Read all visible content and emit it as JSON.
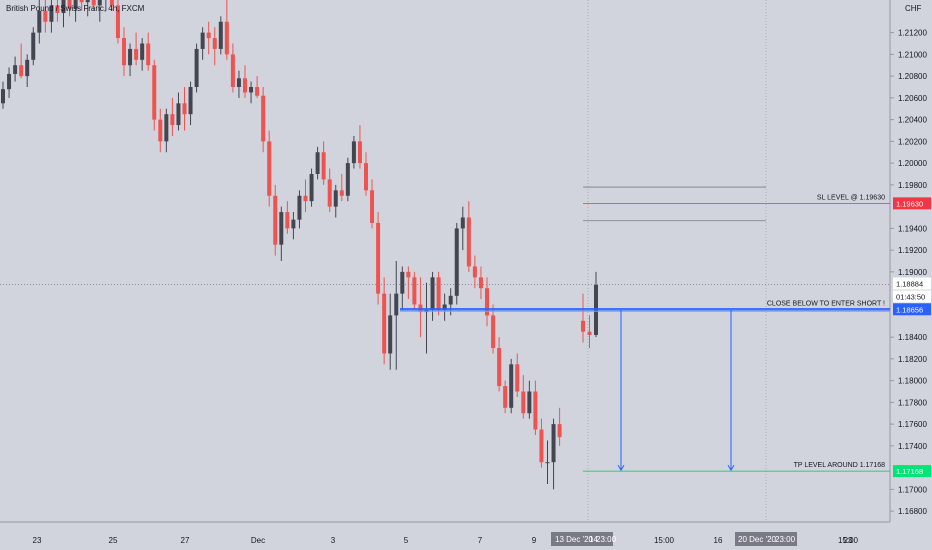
{
  "chart_data": {
    "type": "candlestick",
    "title": "British Pound / Swiss Franc, 4h, FXCM",
    "currency": "CHF",
    "ylim": [
      1.167,
      1.215
    ],
    "y_ticks": [
      "1.21200",
      "1.21000",
      "1.20800",
      "1.20600",
      "1.20400",
      "1.20200",
      "1.20000",
      "1.19800",
      "1.19400",
      "1.19200",
      "1.19000",
      "1.18400",
      "1.18200",
      "1.18000",
      "1.17800",
      "1.17600",
      "1.17400",
      "1.17000",
      "1.16800"
    ],
    "x_ticks": [
      "23",
      "25",
      "27",
      "Dec",
      "3",
      "5",
      "7",
      "9",
      "15:00",
      "16",
      "15:00",
      "23"
    ],
    "x_highlight_labels": [
      "13 Dec '20",
      "14",
      "23:00",
      "20 Dec '20",
      "23:00"
    ],
    "candles": [
      [
        1.2055,
        1.2075,
        1.205,
        1.2068
      ],
      [
        1.2068,
        1.2088,
        1.206,
        1.2082
      ],
      [
        1.2082,
        1.2098,
        1.2075,
        1.209
      ],
      [
        1.209,
        1.211,
        1.2078,
        1.208
      ],
      [
        1.208,
        1.21,
        1.207,
        1.2095
      ],
      [
        1.2095,
        1.2125,
        1.209,
        1.212
      ],
      [
        1.212,
        1.215,
        1.211,
        1.214
      ],
      [
        1.214,
        1.216,
        1.212,
        1.213
      ],
      [
        1.213,
        1.2155,
        1.212,
        1.2145
      ],
      [
        1.2145,
        1.2165,
        1.213,
        1.2138
      ],
      [
        1.2138,
        1.216,
        1.2125,
        1.215
      ],
      [
        1.215,
        1.217,
        1.2135,
        1.2142
      ],
      [
        1.2142,
        1.216,
        1.213,
        1.2152
      ],
      [
        1.2152,
        1.217,
        1.214,
        1.2148
      ],
      [
        1.2148,
        1.2165,
        1.2135,
        1.2155
      ],
      [
        1.2155,
        1.217,
        1.214,
        1.2145
      ],
      [
        1.2145,
        1.2165,
        1.213,
        1.215
      ],
      [
        1.215,
        1.2165,
        1.214,
        1.2158
      ],
      [
        1.2158,
        1.2168,
        1.214,
        1.2145
      ],
      [
        1.2145,
        1.216,
        1.211,
        1.2115
      ],
      [
        1.2115,
        1.2125,
        1.208,
        1.209
      ],
      [
        1.209,
        1.211,
        1.208,
        1.2105
      ],
      [
        1.2105,
        1.212,
        1.209,
        1.2095
      ],
      [
        1.2095,
        1.2115,
        1.2085,
        1.211
      ],
      [
        1.211,
        1.212,
        1.2085,
        1.209
      ],
      [
        1.209,
        1.2095,
        1.203,
        1.204
      ],
      [
        1.204,
        1.205,
        1.201,
        1.202
      ],
      [
        1.202,
        1.205,
        1.201,
        1.2045
      ],
      [
        1.2045,
        1.206,
        1.2025,
        1.2035
      ],
      [
        1.2035,
        1.2065,
        1.203,
        1.2055
      ],
      [
        1.2055,
        1.207,
        1.203,
        1.2045
      ],
      [
        1.2045,
        1.2075,
        1.2035,
        1.207
      ],
      [
        1.207,
        1.211,
        1.2065,
        1.2105
      ],
      [
        1.2105,
        1.2125,
        1.2095,
        1.212
      ],
      [
        1.212,
        1.213,
        1.21,
        1.2115
      ],
      [
        1.2115,
        1.2125,
        1.209,
        1.2105
      ],
      [
        1.2105,
        1.2135,
        1.21,
        1.213
      ],
      [
        1.213,
        1.218,
        1.2095,
        1.21
      ],
      [
        1.21,
        1.211,
        1.2065,
        1.207
      ],
      [
        1.207,
        1.2085,
        1.206,
        1.2078
      ],
      [
        1.2078,
        1.209,
        1.206,
        1.2065
      ],
      [
        1.2065,
        1.2075,
        1.2055,
        1.207
      ],
      [
        1.207,
        1.208,
        1.206,
        1.2062
      ],
      [
        1.2062,
        1.207,
        1.201,
        1.202
      ],
      [
        1.202,
        1.203,
        1.196,
        1.197
      ],
      [
        1.197,
        1.198,
        1.1915,
        1.1925
      ],
      [
        1.1925,
        1.196,
        1.191,
        1.1955
      ],
      [
        1.1955,
        1.1965,
        1.1935,
        1.194
      ],
      [
        1.194,
        1.1955,
        1.193,
        1.1948
      ],
      [
        1.1948,
        1.1975,
        1.194,
        1.197
      ],
      [
        1.197,
        1.1985,
        1.1955,
        1.1965
      ],
      [
        1.1965,
        1.1995,
        1.196,
        1.199
      ],
      [
        1.199,
        1.2015,
        1.1985,
        1.201
      ],
      [
        1.201,
        1.202,
        1.198,
        1.1985
      ],
      [
        1.1985,
        1.1995,
        1.1955,
        1.196
      ],
      [
        1.196,
        1.198,
        1.195,
        1.1975
      ],
      [
        1.1975,
        1.199,
        1.1965,
        1.197
      ],
      [
        1.197,
        1.2005,
        1.1965,
        1.2
      ],
      [
        1.2,
        1.2025,
        1.1995,
        1.202
      ],
      [
        1.202,
        1.2035,
        1.1995,
        1.2
      ],
      [
        1.2,
        1.201,
        1.197,
        1.1975
      ],
      [
        1.1975,
        1.1985,
        1.194,
        1.1945
      ],
      [
        1.1945,
        1.1955,
        1.187,
        1.188
      ],
      [
        1.188,
        1.1895,
        1.1815,
        1.1825
      ],
      [
        1.1825,
        1.188,
        1.181,
        1.186
      ],
      [
        1.186,
        1.191,
        1.181,
        1.188
      ],
      [
        1.188,
        1.1905,
        1.1865,
        1.19
      ],
      [
        1.19,
        1.1905,
        1.1875,
        1.1895
      ],
      [
        1.1895,
        1.19,
        1.1865,
        1.187
      ],
      [
        1.187,
        1.1895,
        1.184,
        1.1863
      ],
      [
        1.1863,
        1.189,
        1.1825,
        1.1865
      ],
      [
        1.1865,
        1.19,
        1.1855,
        1.1895
      ],
      [
        1.1895,
        1.19,
        1.186,
        1.1865
      ],
      [
        1.1865,
        1.188,
        1.1855,
        1.187
      ],
      [
        1.187,
        1.1885,
        1.186,
        1.1878
      ],
      [
        1.1878,
        1.1945,
        1.187,
        1.194
      ],
      [
        1.194,
        1.196,
        1.192,
        1.195
      ],
      [
        1.195,
        1.1965,
        1.19,
        1.1905
      ],
      [
        1.1905,
        1.1915,
        1.1885,
        1.1895
      ],
      [
        1.1895,
        1.1905,
        1.1875,
        1.1885
      ],
      [
        1.1885,
        1.1895,
        1.185,
        1.186
      ],
      [
        1.186,
        1.187,
        1.1825,
        1.183
      ],
      [
        1.183,
        1.184,
        1.179,
        1.1795
      ],
      [
        1.1795,
        1.18,
        1.177,
        1.1775
      ],
      [
        1.1775,
        1.182,
        1.177,
        1.1815
      ],
      [
        1.1815,
        1.1825,
        1.1785,
        1.179
      ],
      [
        1.179,
        1.1805,
        1.1765,
        1.177
      ],
      [
        1.177,
        1.18,
        1.1765,
        1.179
      ],
      [
        1.179,
        1.18,
        1.175,
        1.1755
      ],
      [
        1.1755,
        1.1765,
        1.172,
        1.1725
      ],
      [
        1.1725,
        1.1745,
        1.1705,
        1.1725
      ],
      [
        1.1725,
        1.1765,
        1.17,
        1.176
      ],
      [
        1.176,
        1.1775,
        1.174,
        1.1748
      ],
      [
        1.1855,
        1.188,
        1.1835,
        1.1845
      ],
      [
        1.1845,
        1.186,
        1.183,
        1.1842
      ],
      [
        1.1842,
        1.19,
        1.184,
        1.1888
      ]
    ],
    "last_price": 1.18884,
    "price_labels": {
      "sl": {
        "text": "SL LEVEL @ 1.19630",
        "tag": "1.19630",
        "value": 1.1963,
        "color": "#f23645"
      },
      "entry": {
        "text": "CLOSE BELOW TO ENTER SHORT !",
        "tag": "1.18656",
        "value": 1.18656,
        "color": "#2962ff"
      },
      "tp": {
        "text": "TP LEVEL AROUND 1.17168",
        "tag": "1.17168",
        "value": 1.17168,
        "color": "#00c853"
      },
      "current": {
        "tag": "1.18884",
        "countdown": "01:43:50"
      }
    }
  }
}
